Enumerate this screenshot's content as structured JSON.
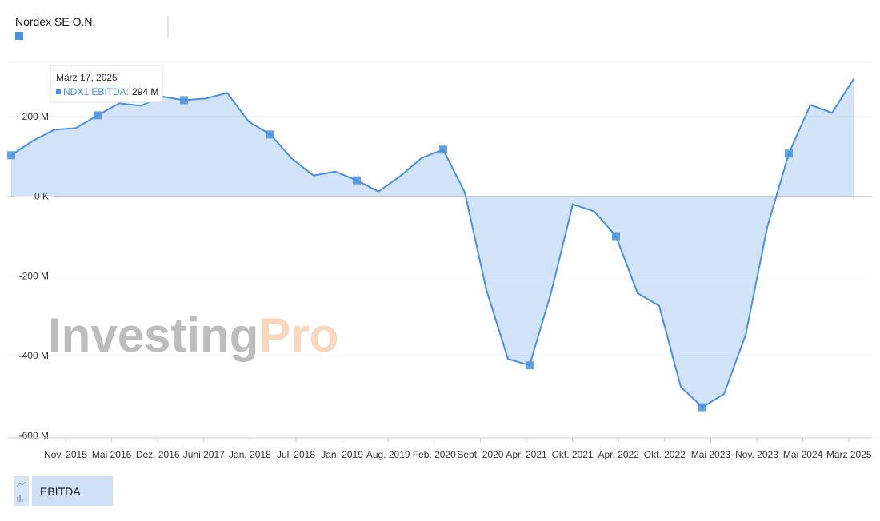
{
  "chart_data": {
    "type": "area",
    "series": [
      {
        "name": "Nordex SE O.N.",
        "color": "#4a90e2",
        "values": [
          103,
          139,
          167,
          171,
          203,
          233,
          227,
          250,
          241,
          245,
          259,
          187,
          155,
          94,
          52,
          62,
          40,
          12,
          50,
          96,
          117,
          10,
          -235,
          -408,
          -424,
          -241,
          -20,
          -38,
          -100,
          -243,
          -275,
          -478,
          -529,
          -496,
          -348,
          -78,
          107,
          229,
          209,
          294
        ]
      }
    ],
    "ylim": [
      -606,
      336
    ],
    "yticks": [
      {
        "value": 200,
        "label": "200 M"
      },
      {
        "value": 0,
        "label": "0 K"
      },
      {
        "value": -200,
        "label": "-200 M"
      },
      {
        "value": -400,
        "label": "-400 M"
      },
      {
        "value": -600,
        "label": "-600 M"
      }
    ],
    "xticks": [
      "Nov. 2015",
      "Mai 2016",
      "Dez. 2016",
      "Juni 2017",
      "Jan. 2018",
      "Juli 2018",
      "Jan. 2019",
      "Aug. 2019",
      "Feb. 2020",
      "Sept. 2020",
      "Apr. 2021",
      "Okt. 2021",
      "Apr. 2022",
      "Okt. 2022",
      "Mai 2023",
      "Nov. 2023",
      "Mai 2024",
      "März 2025"
    ],
    "grid": true,
    "tooltip": {
      "title": "März 17, 2025",
      "label": "NDX1 EBITDA:",
      "value_label": "294 M"
    },
    "watermark": {
      "brand": "Investing",
      "suffix": "Pro"
    },
    "metric_button": "EBITDA"
  }
}
